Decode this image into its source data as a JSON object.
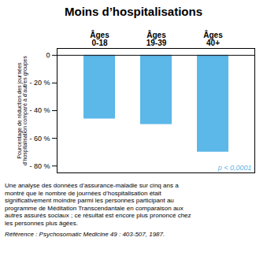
{
  "chart_data": {
    "type": "bar",
    "title": "Moins d’hospitalisations",
    "categories": [
      "Âges\n0-18",
      "Âges\n19-39",
      "Âges\n40+"
    ],
    "values": [
      -46,
      -50,
      -70
    ],
    "color": "#5BB8E8",
    "ylabel": "Pourcentage de réduction des journées\nd’hospitalisation comparé à d’autres groupes",
    "ylim": [
      -85,
      5
    ],
    "yticks": [
      0,
      {
        "value": -20,
        "label": "- 20 %"
      },
      {
        "value": -40,
        "label": "- 40 %"
      },
      {
        "value": -60,
        "label": "- 60 %"
      },
      {
        "value": -80,
        "label": "- 80 %"
      }
    ],
    "grid": false,
    "annotations": [
      "p < 0,0001",
      "Une analyse des données d’assurance-maladie sur cinq ans a\nmontré que le nombre de journées d’hospitalisation était\nsignificativement moindre parmi les personnes participant au\nprogramme de Méditation Transcendantale en comparaison aux\nautres assurés sociaux ; ce résultat est encore plus prononcé chez\nles personnes plus âgées.",
      "Référence : Psychosomatic Medicine 49 : 403-507, 1987."
    ]
  }
}
